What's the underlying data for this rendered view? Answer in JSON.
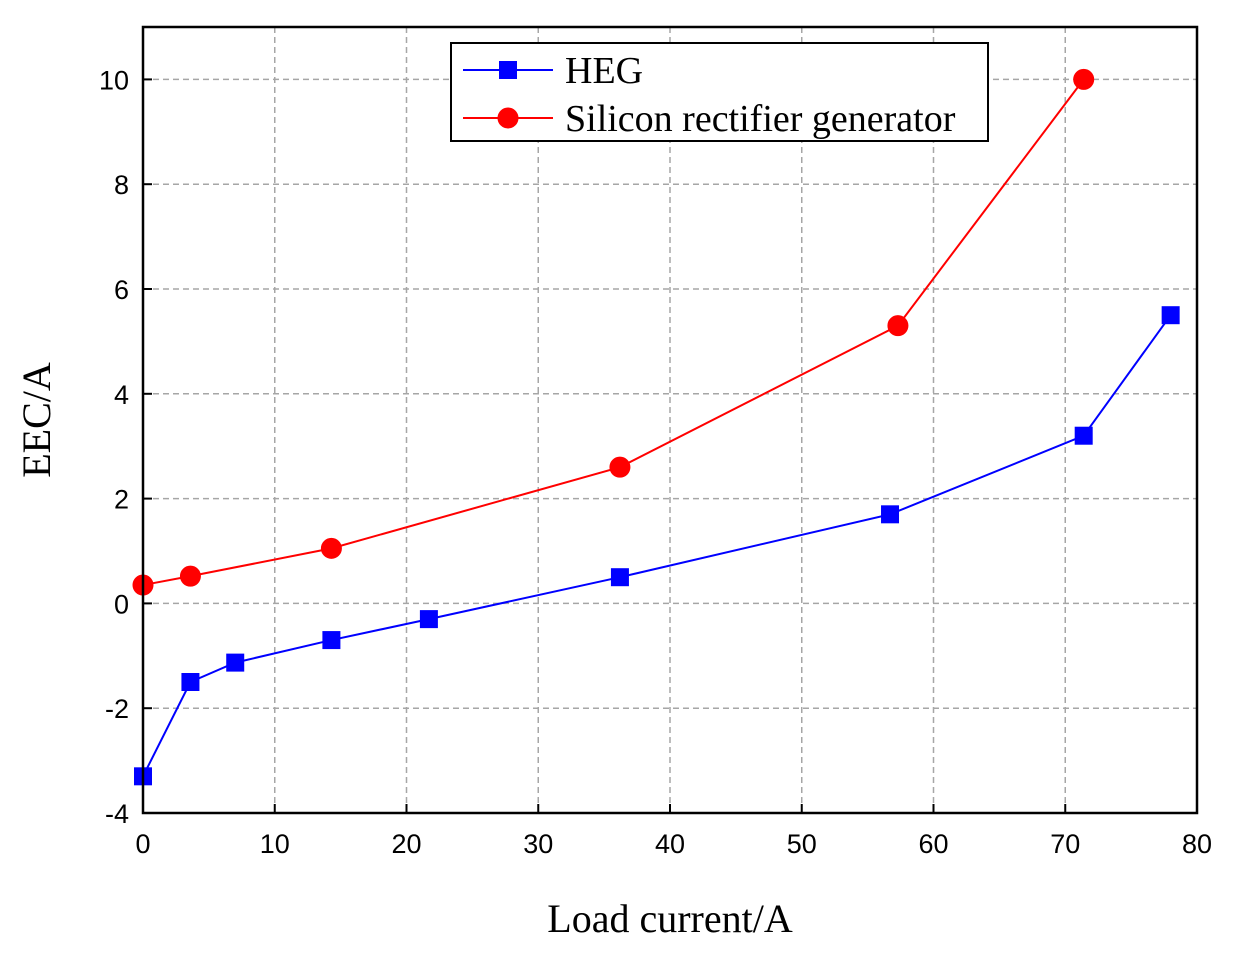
{
  "chart_data": {
    "type": "line",
    "xlabel": "Load current/A",
    "ylabel": "EEC/A",
    "xlim": [
      0,
      80
    ],
    "ylim": [
      -4,
      11
    ],
    "xticks": [
      0,
      10,
      20,
      30,
      40,
      50,
      60,
      70,
      80
    ],
    "yticks": [
      -4,
      -2,
      0,
      2,
      4,
      6,
      8,
      10
    ],
    "xtick_labels": [
      "0",
      "10",
      "20",
      "30",
      "40",
      "50",
      "60",
      "70",
      "80"
    ],
    "ytick_labels": [
      "-4",
      "-2",
      "0",
      "2",
      "4",
      "6",
      "8",
      "10"
    ],
    "grid": true,
    "legend_position": "top-center",
    "series": [
      {
        "name": "HEG",
        "color": "#0000ff",
        "marker": "square",
        "x": [
          0,
          3.6,
          7.0,
          14.3,
          21.7,
          36.2,
          56.7,
          71.4,
          78.0
        ],
        "y": [
          -3.3,
          -1.5,
          -1.13,
          -0.7,
          -0.3,
          0.5,
          1.7,
          3.2,
          5.5
        ]
      },
      {
        "name": "Silicon rectifier generator",
        "color": "#ff0000",
        "marker": "circle",
        "x": [
          0,
          3.6,
          14.3,
          36.2,
          57.3,
          71.4
        ],
        "y": [
          0.35,
          0.52,
          1.05,
          2.6,
          5.3,
          10.0
        ]
      }
    ]
  }
}
